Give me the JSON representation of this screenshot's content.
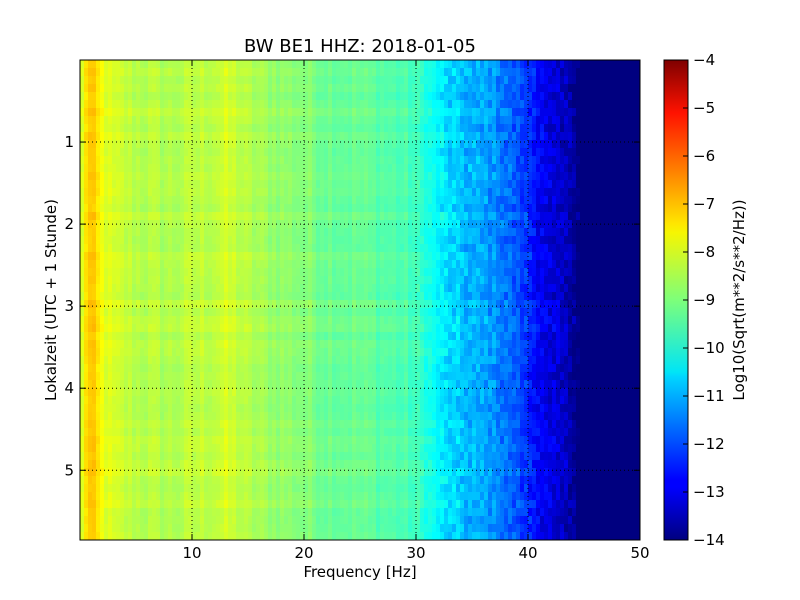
{
  "chart_data": {
    "type": "heatmap",
    "title": "BW BE1 HHZ: 2018-01-05",
    "xlabel": "Frequency [Hz]",
    "ylabel": "Lokalzeit (UTC + 1 Stunde)",
    "xlim": [
      0,
      50
    ],
    "ylim": [
      5.85,
      0
    ],
    "x_ticks": [
      10,
      20,
      30,
      40,
      50
    ],
    "y_ticks": [
      1,
      2,
      3,
      4,
      5
    ],
    "grid": true,
    "grid_style": "dotted",
    "colorbar": {
      "label": "Log10(Sqrt(m**2/s**2/Hz))",
      "range": [
        -14,
        -4
      ],
      "ticks": [
        -4,
        -5,
        -6,
        -7,
        -8,
        -9,
        -10,
        -11,
        -12,
        -13,
        -14
      ],
      "colormap": "jet"
    },
    "frequency_profile": {
      "frequencies": [
        0,
        0.5,
        1,
        1.5,
        2,
        3,
        5,
        8,
        10,
        12,
        13,
        14,
        15,
        17,
        20,
        22,
        25,
        28,
        30,
        31,
        32,
        33,
        34,
        35,
        36,
        37,
        38,
        39,
        40,
        41,
        42,
        43,
        44,
        44.5,
        50
      ],
      "log10_values": [
        -8.5,
        -7.4,
        -7.2,
        -7.5,
        -7.9,
        -8.2,
        -8.4,
        -8.5,
        -8.4,
        -8.3,
        -8.2,
        -8.3,
        -8.5,
        -8.7,
        -8.9,
        -9.1,
        -9.2,
        -9.4,
        -9.6,
        -9.9,
        -10.3,
        -10.6,
        -10.8,
        -11.0,
        -11.1,
        -11.3,
        -11.6,
        -11.9,
        -12.3,
        -12.7,
        -13.1,
        -13.3,
        -13.6,
        -14.0,
        -14.0
      ]
    }
  },
  "colors": {
    "grid": "#000000",
    "background": "#ffffff",
    "noise_floor": "#000080"
  }
}
